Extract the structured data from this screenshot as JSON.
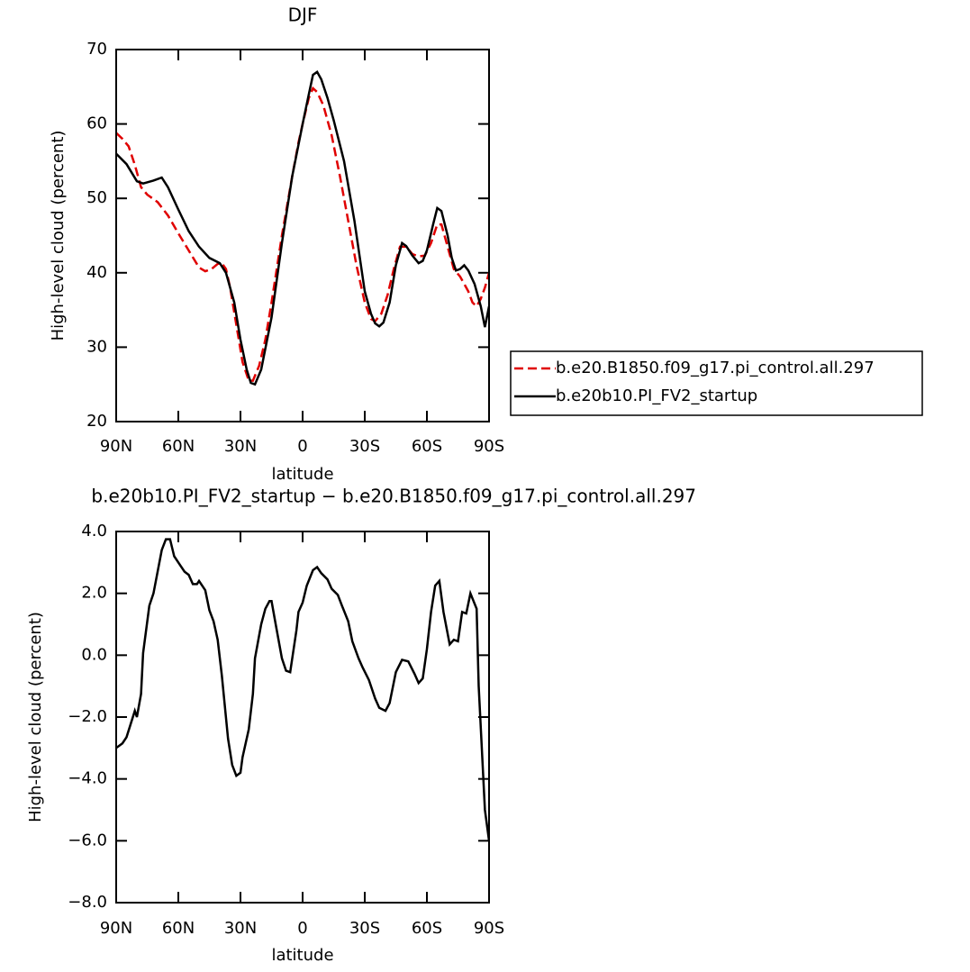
{
  "chart_data": [
    {
      "type": "line",
      "title": "DJF",
      "xlabel": "latitude",
      "ylabel": "High-level cloud (percent)",
      "xlim": [
        90,
        -90
      ],
      "ylim": [
        20,
        70
      ],
      "xticks": [
        {
          "value": 90,
          "label": "90N"
        },
        {
          "value": 60,
          "label": "60N"
        },
        {
          "value": 30,
          "label": "30N"
        },
        0,
        {
          "value": -30,
          "label": "30S"
        },
        {
          "value": -60,
          "label": "60S"
        },
        {
          "value": -90,
          "label": "90S"
        }
      ],
      "yticks": [
        20,
        30,
        40,
        50,
        60,
        70
      ],
      "legend": "right",
      "series": [
        {
          "name": "b.e20.B1850.f09_g17.pi_control.all.297",
          "color": "#e00000",
          "dash": "dashed",
          "x": [
            90,
            87,
            84,
            81,
            78,
            75,
            70,
            65,
            60,
            55,
            50,
            47,
            44,
            41,
            39,
            37,
            35,
            32,
            29,
            26,
            24,
            21,
            18,
            15,
            10,
            5,
            2,
            0,
            -3,
            -5,
            -7,
            -10,
            -14,
            -18,
            -22,
            -26,
            -30,
            -33,
            -35,
            -38,
            -41,
            -44,
            -47,
            -50,
            -53,
            -56,
            -59,
            -62,
            -65,
            -67,
            -70,
            -73,
            -76,
            -78,
            -80,
            -82,
            -84,
            -86,
            -88,
            -90
          ],
          "values": [
            58.8,
            58,
            57,
            54.5,
            51.5,
            50.5,
            49.5,
            47.7,
            45.3,
            43,
            40.7,
            40.2,
            40.5,
            41.2,
            41.3,
            40.5,
            38,
            33,
            28,
            25.5,
            25.5,
            27.5,
            31,
            36,
            45,
            53,
            57.5,
            60,
            63.5,
            64.8,
            64.3,
            62.5,
            58.5,
            53,
            47,
            41,
            36,
            33.8,
            33.5,
            34.5,
            37,
            40.5,
            43.5,
            43.5,
            42.5,
            42.2,
            42.3,
            44,
            46.5,
            46.5,
            43.5,
            40.5,
            39.5,
            38.5,
            37.5,
            36,
            35.5,
            36.5,
            38,
            40
          ]
        },
        {
          "name": "b.e20b10.PI_FV2_startup",
          "color": "#000000",
          "dash": "solid",
          "x": [
            90,
            85,
            80,
            77,
            72,
            68,
            65,
            60,
            55,
            50,
            45,
            40,
            37,
            33,
            30,
            27,
            25,
            23,
            20,
            15,
            10,
            5,
            0,
            -3,
            -5,
            -7,
            -9,
            -12,
            -15,
            -20,
            -25,
            -30,
            -33,
            -35,
            -37,
            -39,
            -42,
            -45,
            -48,
            -50,
            -53,
            -56,
            -58,
            -60,
            -63,
            -65,
            -67,
            -70,
            -72,
            -74,
            -76,
            -78,
            -80,
            -83,
            -86,
            -88,
            -90
          ],
          "values": [
            56,
            54.6,
            52.3,
            52,
            52.4,
            52.8,
            51.5,
            48.5,
            45.6,
            43.5,
            42,
            41.3,
            40,
            36,
            31,
            27,
            25.2,
            25,
            27,
            34,
            44,
            53,
            60,
            64,
            66.6,
            67,
            66,
            63.5,
            60.5,
            55,
            47,
            37.5,
            34.5,
            33.2,
            32.8,
            33.3,
            36,
            41,
            44,
            43.6,
            42.3,
            41.3,
            41.6,
            43,
            46.5,
            48.7,
            48.3,
            45,
            42,
            40.3,
            40.5,
            41,
            40.3,
            38.5,
            35.5,
            32.7,
            35.5
          ]
        }
      ]
    },
    {
      "type": "line",
      "title": "b.e20b10.PI_FV2_startup − b.e20.B1850.f09_g17.pi_control.all.297",
      "xlabel": "latitude",
      "ylabel": "High-level cloud (percent)",
      "xlim": [
        90,
        -90
      ],
      "ylim": [
        -8,
        4
      ],
      "xticks": [
        {
          "value": 90,
          "label": "90N"
        },
        {
          "value": 60,
          "label": "60N"
        },
        {
          "value": 30,
          "label": "30N"
        },
        0,
        {
          "value": -30,
          "label": "30S"
        },
        {
          "value": -60,
          "label": "60S"
        },
        {
          "value": -90,
          "label": "90S"
        }
      ],
      "yticks": [
        {
          "value": -8,
          "label": "−8.0"
        },
        {
          "value": -6,
          "label": "−6.0"
        },
        {
          "value": -4,
          "label": "−4.0"
        },
        {
          "value": -2,
          "label": "−2.0"
        },
        {
          "value": 0,
          "label": "0.0"
        },
        {
          "value": 2,
          "label": "2.0"
        },
        {
          "value": 4,
          "label": "4.0"
        }
      ],
      "series": [
        {
          "color": "#000000",
          "dash": "solid",
          "x": [
            90,
            87,
            85,
            81,
            80,
            78,
            77,
            74,
            72,
            68,
            66,
            64,
            62,
            59,
            57,
            55,
            53,
            51,
            50,
            47,
            45,
            43,
            41,
            39,
            36,
            34,
            32,
            30,
            29,
            26,
            24,
            23,
            20,
            18,
            16,
            15,
            13,
            10,
            8,
            6,
            3,
            2,
            0,
            -2,
            -5,
            -7,
            -9,
            -12,
            -14,
            -17,
            -19,
            -22,
            -24,
            -27,
            -29,
            -32,
            -35,
            -37,
            -40,
            -42,
            -45,
            -48,
            -51,
            -54,
            -56,
            -58,
            -60,
            -62,
            -64,
            -66,
            -68,
            -71,
            -73,
            -75,
            -77,
            -79,
            -81,
            -84,
            -85,
            -88,
            -90
          ],
          "values": [
            -3.0,
            -2.85,
            -2.65,
            -1.8,
            -2.0,
            -1.25,
            0.07,
            1.6,
            2.0,
            3.4,
            3.75,
            3.75,
            3.2,
            2.9,
            2.7,
            2.6,
            2.3,
            2.3,
            2.4,
            2.1,
            1.45,
            1.1,
            0.5,
            -0.65,
            -2.7,
            -3.55,
            -3.9,
            -3.8,
            -3.3,
            -2.4,
            -1.25,
            -0.1,
            1.0,
            1.5,
            1.75,
            1.75,
            1.0,
            -0.1,
            -0.5,
            -0.55,
            0.8,
            1.4,
            1.7,
            2.25,
            2.75,
            2.85,
            2.65,
            2.45,
            2.15,
            1.95,
            1.6,
            1.1,
            0.45,
            -0.1,
            -0.4,
            -0.8,
            -1.4,
            -1.7,
            -1.8,
            -1.55,
            -0.55,
            -0.15,
            -0.2,
            -0.6,
            -0.9,
            -0.75,
            0.2,
            1.4,
            2.25,
            2.4,
            1.4,
            0.35,
            0.5,
            0.45,
            1.4,
            1.35,
            2.0,
            1.5,
            -1.0,
            -5.0,
            -6.0
          ]
        }
      ]
    }
  ]
}
